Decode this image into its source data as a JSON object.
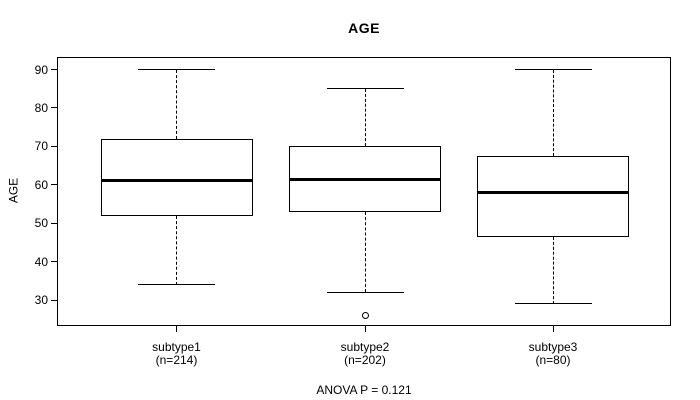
{
  "chart_data": {
    "type": "boxplot",
    "title": "AGE",
    "xlabel": "",
    "ylabel": "AGE",
    "ylim": [
      23.5,
      93
    ],
    "y_ticks": [
      30,
      40,
      50,
      60,
      70,
      80,
      90
    ],
    "grid": false,
    "categories": [
      "subtype1",
      "subtype2",
      "subtype3"
    ],
    "groups": [
      {
        "label": "subtype1",
        "count_label": "(n=214)",
        "n": 214,
        "whisker_low": 34,
        "q1": 52,
        "median": 61,
        "q3": 72,
        "whisker_high": 90,
        "outliers": []
      },
      {
        "label": "subtype2",
        "count_label": "(n=202)",
        "n": 202,
        "whisker_low": 32,
        "q1": 53,
        "median": 61.5,
        "q3": 70,
        "whisker_high": 85,
        "outliers": [
          26
        ]
      },
      {
        "label": "subtype3",
        "count_label": "(n=80)",
        "n": 80,
        "whisker_low": 29,
        "q1": 46.5,
        "median": 58,
        "q3": 67.5,
        "whisker_high": 90,
        "outliers": []
      }
    ],
    "annotation": "ANOVA P = 0.121",
    "line_color": "#000000",
    "background_color": "#ffffff"
  }
}
